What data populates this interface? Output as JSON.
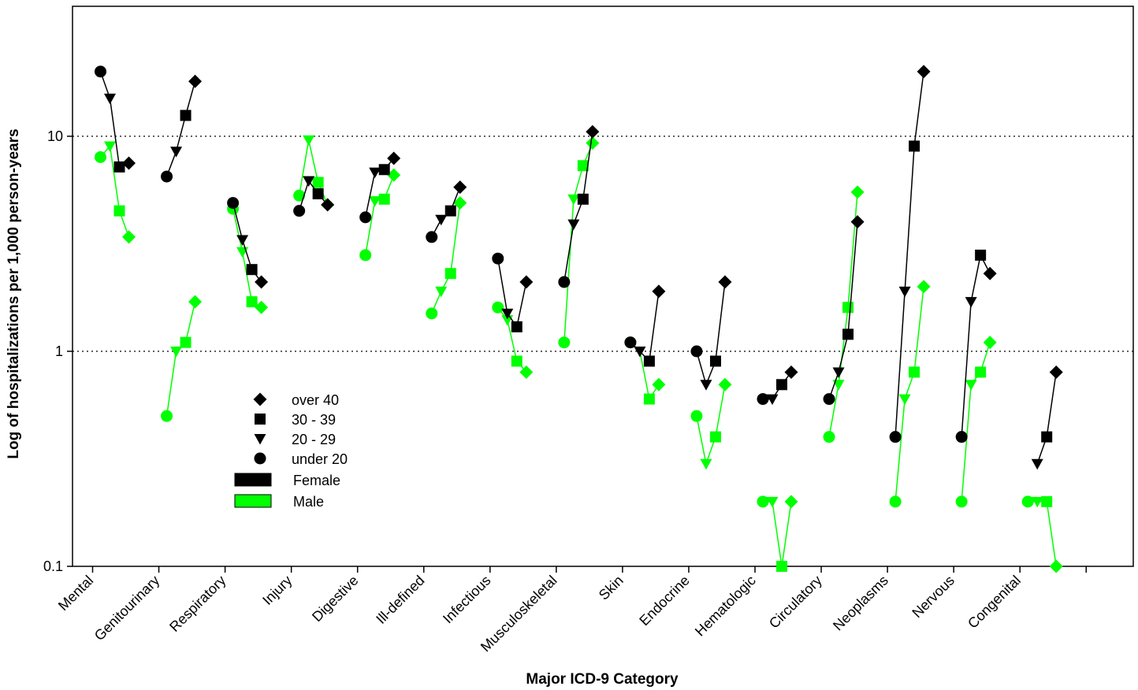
{
  "chart_data": {
    "type": "scatter",
    "title": "",
    "xlabel": "Major ICD-9 Category",
    "ylabel": "Log of hospitalizations per 1,000 person-years",
    "yscale": "log",
    "ylim": [
      0.1,
      30
    ],
    "yticks": [
      0.1,
      1,
      10
    ],
    "ytick_labels": [
      "0.1",
      "1",
      "10"
    ],
    "grid": "dotted horizontal lines at 1 and 10",
    "categories": [
      "Mental",
      "Genitourinary",
      "Respiratory",
      "Injury",
      "Digestive",
      "Ill-defined",
      "Infectious",
      "Musculoskeletal",
      "Skin",
      "Endocrine",
      "Hematologic",
      "Circulatory",
      "Neoplasms",
      "Nervous",
      "Congenital"
    ],
    "age_groups": [
      "under 20",
      "20 - 29",
      "30 - 39",
      "over 40"
    ],
    "series": [
      {
        "name": "Female",
        "color": "#000000",
        "values": [
          [
            20,
            15,
            7.2,
            7.5
          ],
          [
            6.5,
            8.5,
            12.5,
            18
          ],
          [
            4.9,
            3.3,
            2.4,
            2.1
          ],
          [
            4.5,
            6.2,
            5.4,
            4.8
          ],
          [
            4.2,
            6.8,
            7.0,
            7.9
          ],
          [
            3.4,
            4.1,
            4.5,
            5.8
          ],
          [
            2.7,
            1.5,
            1.3,
            2.1
          ],
          [
            2.1,
            3.9,
            5.1,
            10.5
          ],
          [
            1.1,
            1.0,
            0.9,
            1.9
          ],
          [
            1.0,
            0.7,
            0.9,
            2.1
          ],
          [
            0.6,
            0.6,
            0.7,
            0.8
          ],
          [
            0.6,
            0.8,
            1.2,
            4.0
          ],
          [
            0.4,
            1.9,
            9.0,
            20
          ],
          [
            0.4,
            1.7,
            2.8,
            2.3
          ],
          [
            null,
            0.3,
            0.4,
            0.8
          ]
        ]
      },
      {
        "name": "Male",
        "color": "#00ff00",
        "values": [
          [
            8.0,
            9.0,
            4.5,
            3.4
          ],
          [
            0.5,
            1.0,
            1.1,
            1.7
          ],
          [
            4.6,
            2.9,
            1.7,
            1.6
          ],
          [
            5.3,
            9.6,
            6.1,
            4.8
          ],
          [
            2.8,
            5.0,
            5.1,
            6.6
          ],
          [
            1.5,
            1.9,
            2.3,
            4.9
          ],
          [
            1.6,
            1.4,
            0.9,
            0.8
          ],
          [
            1.1,
            5.1,
            7.3,
            9.3
          ],
          [
            1.1,
            1.0,
            0.6,
            0.7
          ],
          [
            0.5,
            0.3,
            0.4,
            0.7
          ],
          [
            0.2,
            0.2,
            0.1,
            0.2
          ],
          [
            0.4,
            0.7,
            1.6,
            5.5
          ],
          [
            0.2,
            0.6,
            0.8,
            2.0
          ],
          [
            0.2,
            0.7,
            0.8,
            1.1
          ],
          [
            0.2,
            0.2,
            0.2,
            0.1
          ]
        ]
      }
    ],
    "legend": {
      "placement": "lower-left inside plot",
      "age_entries": [
        "over 40",
        "30 - 39",
        "20 - 29",
        "under 20"
      ],
      "series_entries": [
        "Female",
        "Male"
      ]
    }
  }
}
